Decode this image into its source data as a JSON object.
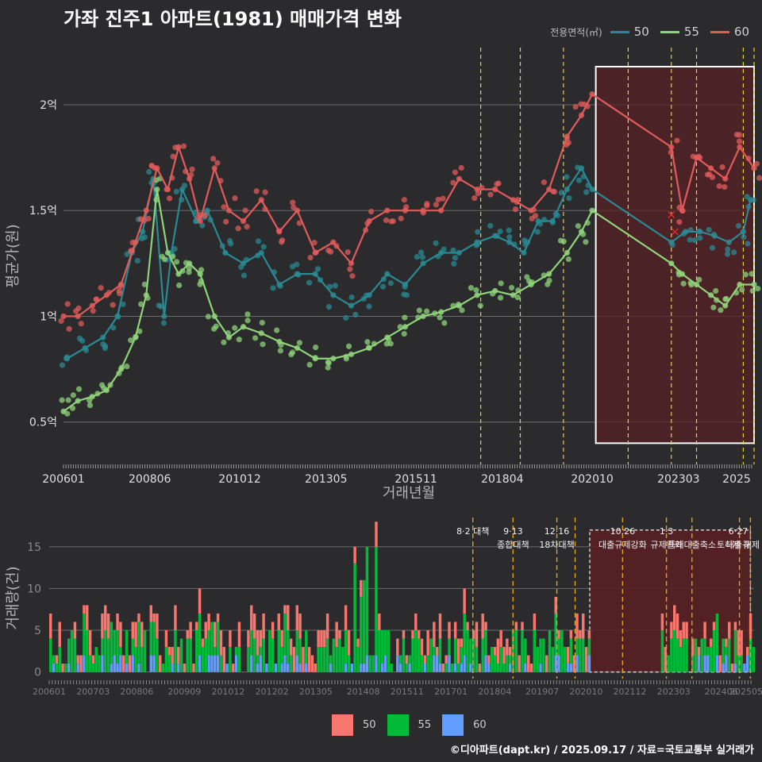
{
  "title": "가좌 진주1 아파트(1981) 매매가격 변화",
  "legend_title": "전용면적(㎡)",
  "caption": "©디아파트(dapt.kr) / 2025.09.17 / 자료=국토교통부 실거래가",
  "colors": {
    "s50": "#2a8a93",
    "s55": "#8fd37a",
    "s60": "#e25b5b",
    "b50": "#f8766d",
    "b55": "#00ba38",
    "b60": "#619cff"
  },
  "chart_data": [
    {
      "type": "line",
      "title": "가좌 진주1 아파트(1981) 매매가격 변화",
      "xlabel": "거래년월",
      "ylabel": "평균가(원)",
      "x_ticks": [
        "200601",
        "200806",
        "201012",
        "201305",
        "201511",
        "201804",
        "202010",
        "202303",
        "2025"
      ],
      "y_ticks": [
        {
          "v": 0.5,
          "label": "0.5억"
        },
        {
          "v": 1.0,
          "label": "1억"
        },
        {
          "v": 1.5,
          "label": "1.5억"
        },
        {
          "v": 2.0,
          "label": "2억"
        }
      ],
      "ylim": [
        0.3,
        2.27
      ],
      "xlim": [
        2006.0,
        2025.2
      ],
      "series": [
        {
          "name": "50",
          "color": "#2a8a93",
          "x": [
            2006.1,
            2006.6,
            2007.1,
            2007.5,
            2007.9,
            2008.2,
            2008.5,
            2008.8,
            2009.0,
            2009.3,
            2009.7,
            2010.0,
            2010.5,
            2011.0,
            2011.5,
            2012.0,
            2012.5,
            2013.0,
            2013.5,
            2014.0,
            2014.5,
            2015.0,
            2015.5,
            2016.0,
            2016.5,
            2017.0,
            2017.5,
            2018.0,
            2018.4,
            2018.8,
            2019.2,
            2019.6,
            2020.0,
            2020.4,
            2020.7,
            2022.9,
            2023.3,
            2023.7,
            2024.1,
            2024.5,
            2024.9,
            2025.1
          ],
          "y": [
            0.8,
            0.85,
            0.9,
            1.0,
            1.3,
            1.4,
            1.65,
            1.0,
            1.3,
            1.6,
            1.45,
            1.5,
            1.3,
            1.25,
            1.3,
            1.15,
            1.2,
            1.2,
            1.1,
            1.05,
            1.1,
            1.2,
            1.15,
            1.25,
            1.3,
            1.3,
            1.35,
            1.38,
            1.35,
            1.3,
            1.45,
            1.45,
            1.6,
            1.7,
            1.6,
            1.35,
            1.4,
            1.4,
            1.38,
            1.35,
            1.4,
            1.55
          ]
        },
        {
          "name": "55",
          "color": "#8fd37a",
          "x": [
            2006.0,
            2006.4,
            2006.8,
            2007.2,
            2007.6,
            2008.0,
            2008.3,
            2008.6,
            2008.9,
            2009.2,
            2009.5,
            2009.8,
            2010.2,
            2010.6,
            2011.0,
            2011.5,
            2012.0,
            2012.5,
            2013.0,
            2013.5,
            2014.0,
            2014.5,
            2015.0,
            2015.5,
            2016.0,
            2016.5,
            2017.0,
            2017.5,
            2018.0,
            2018.5,
            2019.0,
            2019.5,
            2020.0,
            2020.4,
            2020.7,
            2022.9,
            2023.2,
            2023.6,
            2024.0,
            2024.4,
            2024.8,
            2025.2
          ],
          "y": [
            0.55,
            0.6,
            0.62,
            0.65,
            0.75,
            0.9,
            1.1,
            1.6,
            1.3,
            1.2,
            1.25,
            1.2,
            1.0,
            0.9,
            0.95,
            0.92,
            0.88,
            0.85,
            0.8,
            0.8,
            0.82,
            0.85,
            0.9,
            0.95,
            1.0,
            1.02,
            1.05,
            1.1,
            1.12,
            1.1,
            1.15,
            1.2,
            1.3,
            1.4,
            1.5,
            1.25,
            1.2,
            1.15,
            1.1,
            1.05,
            1.15,
            1.15
          ]
        },
        {
          "name": "60",
          "color": "#e25b5b",
          "x": [
            2006.0,
            2006.4,
            2006.8,
            2007.2,
            2007.6,
            2008.0,
            2008.3,
            2008.6,
            2008.9,
            2009.2,
            2009.5,
            2009.8,
            2010.2,
            2010.6,
            2011.0,
            2011.5,
            2012.0,
            2012.5,
            2013.0,
            2013.5,
            2014.0,
            2014.5,
            2015.0,
            2015.5,
            2016.0,
            2016.5,
            2017.0,
            2017.5,
            2018.0,
            2018.5,
            2019.0,
            2019.5,
            2020.0,
            2020.4,
            2020.7,
            2022.9,
            2023.2,
            2023.6,
            2024.0,
            2024.4,
            2024.8,
            2025.2
          ],
          "y": [
            1.0,
            1.0,
            1.05,
            1.1,
            1.15,
            1.35,
            1.5,
            1.7,
            1.6,
            1.8,
            1.65,
            1.45,
            1.7,
            1.5,
            1.45,
            1.55,
            1.4,
            1.5,
            1.3,
            1.35,
            1.25,
            1.45,
            1.5,
            1.5,
            1.5,
            1.5,
            1.65,
            1.6,
            1.6,
            1.55,
            1.5,
            1.6,
            1.85,
            1.95,
            2.05,
            1.8,
            1.5,
            1.75,
            1.7,
            1.65,
            1.8,
            1.7
          ]
        }
      ],
      "cross_markers": [
        {
          "x": 2022.9,
          "y": 1.48
        },
        {
          "x": 2023.0,
          "y": 1.4
        }
      ],
      "highlight_range": [
        2020.8,
        2025.2
      ],
      "policy_lines": [
        2017.6,
        2018.7,
        2019.9,
        2021.7,
        2022.9,
        2023.6,
        2024.9,
        2025.2
      ]
    },
    {
      "type": "bar",
      "stacked": true,
      "ylabel": "거래량(건)",
      "x_ticks": [
        "200601",
        "200703",
        "200806",
        "200909",
        "201012",
        "201202",
        "201305",
        "201408",
        "201511",
        "201701",
        "201804",
        "201907",
        "202010",
        "202112",
        "202303",
        "202406",
        "202505"
      ],
      "y_ticks": [
        0,
        5,
        10,
        15
      ],
      "ylim": [
        -0.8,
        18.5
      ],
      "series_names": [
        "50",
        "55",
        "60"
      ],
      "series_colors": [
        "#f8766d",
        "#00ba38",
        "#619cff"
      ],
      "highlight_range": [
        2020.8,
        2025.2
      ],
      "policy_lines": [
        2017.6,
        2018.7,
        2019.9,
        2020.4,
        2021.7,
        2022.9,
        2023.6,
        2024.9,
        2025.2
      ],
      "annotations": [
        {
          "x": 2017.6,
          "line1": "8·2 대책",
          "line2": ""
        },
        {
          "x": 2018.7,
          "line1": "9·13",
          "line2": "종합대책"
        },
        {
          "x": 2019.9,
          "line1": "12·16",
          "line2": "18차대책"
        },
        {
          "x": 2021.7,
          "line1": "10.26",
          "line2": "대출규제강화"
        },
        {
          "x": 2022.9,
          "line1": "1·3",
          "line2": "규제완화"
        },
        {
          "x": 2023.6,
          "line1": "",
          "line2": "특례대출축소"
        },
        {
          "x": 2024.9,
          "line1": "",
          "line2": "토허제 해제"
        },
        {
          "x": 2025.2,
          "line1": "6·27",
          "line2": "대출규"
        }
      ]
    }
  ]
}
